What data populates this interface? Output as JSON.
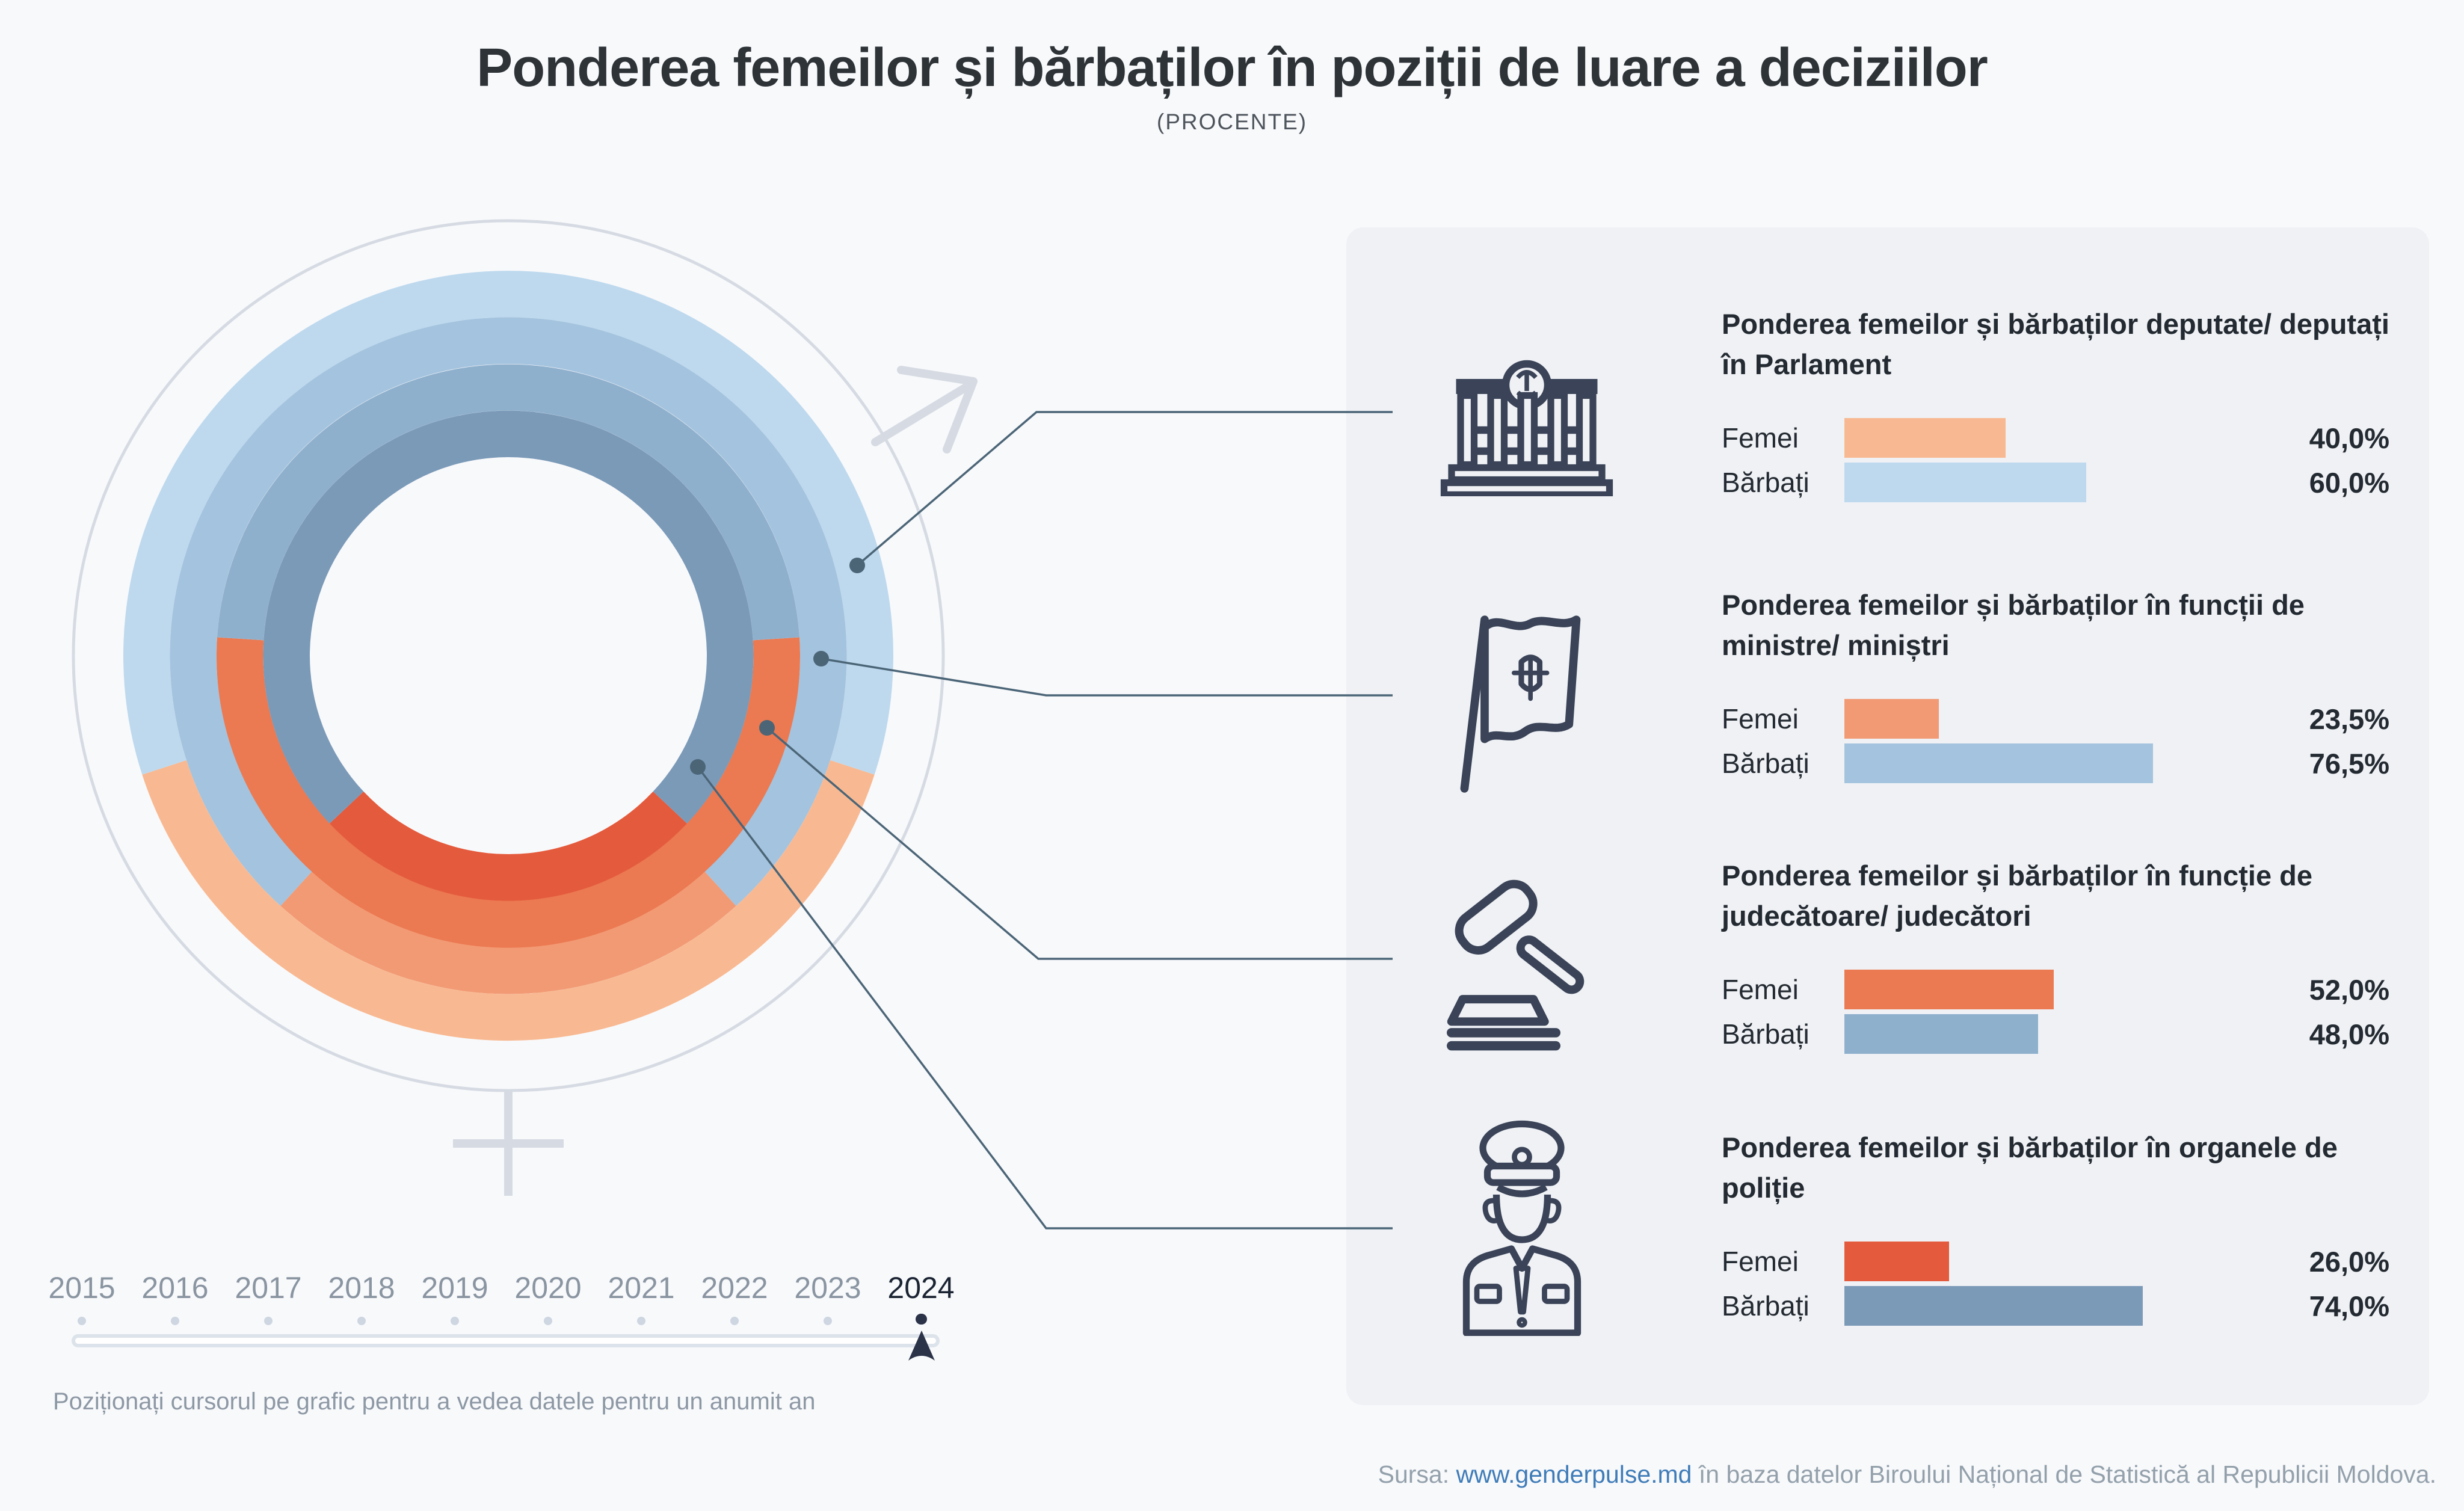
{
  "page": {
    "title": "Ponderea femeilor și bărbaților în poziții de luare a deciziilor",
    "subtitle": "(PROCENTE)",
    "hint": "Poziționați cursorul pe grafic pentru a vedea datele pentru un anumit an",
    "source": {
      "prefix": "Sursa: ",
      "link_text": "www.genderpulse.md",
      "rest": " în baza datelor Biroului Național de Statistică al Republicii Moldova."
    }
  },
  "timeline": {
    "years": [
      "2015",
      "2016",
      "2017",
      "2018",
      "2019",
      "2020",
      "2021",
      "2022",
      "2023",
      "2024"
    ],
    "selected_year": "2024"
  },
  "chart_data": {
    "type": "donut",
    "unit": "%",
    "year": "2024",
    "ring_order": "outer-to-inner",
    "female_segment_anchor": "bottom-center",
    "rings": [
      {
        "name": "deputate/ deputați în Parlament",
        "femei": 40.0,
        "barbati": 60.0,
        "femei_color": "#f8b992",
        "barbati_color": "#bed9ee"
      },
      {
        "name": "ministre/ miniștri",
        "femei": 23.5,
        "barbati": 76.5,
        "femei_color": "#f29a74",
        "barbati_color": "#a4c3de"
      },
      {
        "name": "judecătoare/ judecători",
        "femei": 52.0,
        "barbati": 48.0,
        "femei_color": "#eb7951",
        "barbati_color": "#8fb0cd"
      },
      {
        "name": "organele de poliție",
        "femei": 26.0,
        "barbati": 74.0,
        "femei_color": "#e45a3c",
        "barbati_color": "#7b9ab8"
      }
    ]
  },
  "panel": {
    "sections": [
      {
        "icon": "parliament-icon",
        "title": "Ponderea femeilor și bărbaților deputate/ deputați în Parlament",
        "rows": [
          {
            "label": "Femei",
            "value": 40.0,
            "display": "40,0%",
            "color": "#f8b992"
          },
          {
            "label": "Bărbați",
            "value": 60.0,
            "display": "60,0%",
            "color": "#bed9ee"
          }
        ]
      },
      {
        "icon": "flag-icon",
        "title": "Ponderea femeilor și bărbaților în funcții de ministre/ miniștri",
        "rows": [
          {
            "label": "Femei",
            "value": 23.5,
            "display": "23,5%",
            "color": "#f29a74"
          },
          {
            "label": "Bărbați",
            "value": 76.5,
            "display": "76,5%",
            "color": "#a4c3de"
          }
        ]
      },
      {
        "icon": "gavel-icon",
        "title": "Ponderea femeilor și bărbaților în funcție de judecătoare/ judecători",
        "rows": [
          {
            "label": "Femei",
            "value": 52.0,
            "display": "52,0%",
            "color": "#eb7951"
          },
          {
            "label": "Bărbați",
            "value": 48.0,
            "display": "48,0%",
            "color": "#8fb0cd"
          }
        ]
      },
      {
        "icon": "police-icon",
        "title": "Ponderea femeilor și bărbaților în organele de poliție",
        "rows": [
          {
            "label": "Femei",
            "value": 26.0,
            "display": "26,0%",
            "color": "#e45a3c"
          },
          {
            "label": "Bărbați",
            "value": 74.0,
            "display": "74,0%",
            "color": "#7b9ab8"
          }
        ]
      }
    ]
  },
  "colors": {
    "page_bg": "#f8f9fb",
    "panel_bg": "#eff1f5",
    "connector": "#4b6577",
    "gender_symbol": "#d6dbe3",
    "link": "#3f7cb8",
    "femei_palette": [
      "#f8b992",
      "#f29a74",
      "#eb7951",
      "#e45a3c"
    ],
    "barbati_palette": [
      "#bed9ee",
      "#a4c3de",
      "#8fb0cd",
      "#7b9ab8"
    ]
  }
}
